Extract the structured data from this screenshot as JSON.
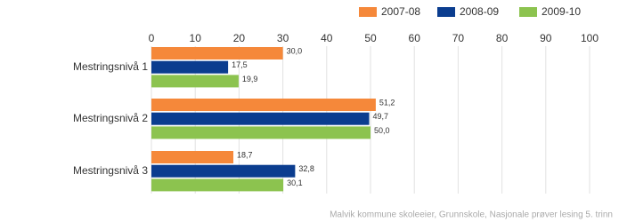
{
  "chart_data": {
    "type": "bar",
    "categories": [
      "Mestringsnivå 1",
      "Mestringsnivå 2",
      "Mestringsnivå 3"
    ],
    "series": [
      {
        "name": "2007-08",
        "color": "#f5883a",
        "values": [
          30.0,
          51.2,
          18.7
        ],
        "value_labels": [
          "30,0",
          "51,2",
          "18,7"
        ]
      },
      {
        "name": "2008-09",
        "color": "#0b3d8f",
        "values": [
          17.5,
          49.7,
          32.8
        ],
        "value_labels": [
          "17,5",
          "49,7",
          "32,8"
        ]
      },
      {
        "name": "2009-10",
        "color": "#8cc34f",
        "values": [
          19.9,
          50.0,
          30.1
        ],
        "value_labels": [
          "19,9",
          "50,0",
          "30,1"
        ]
      }
    ],
    "xlim": [
      0,
      100
    ],
    "xticks": [
      0,
      10,
      20,
      30,
      40,
      50,
      60,
      70,
      80,
      90,
      100
    ],
    "grid": true,
    "source": "Malvik kommune skoleeier, Grunnskole, Nasjonale prøver lesing 5. trinn"
  }
}
